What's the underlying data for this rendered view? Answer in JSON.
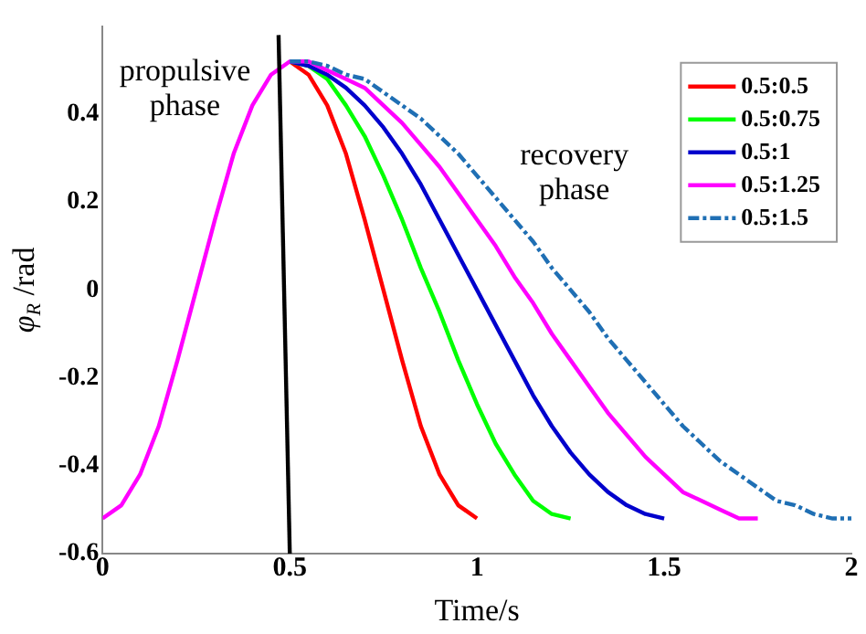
{
  "chart_data": {
    "type": "line",
    "xlabel": "Time/s",
    "ylabel": "φ$_{R}$ /rad",
    "xlim": [
      0,
      2
    ],
    "xticks": [
      0,
      0.5,
      1,
      1.5,
      2
    ],
    "ylim": [
      -0.6,
      0.6
    ],
    "yticks": [
      -0.6,
      -0.4,
      -0.2,
      0,
      0.2,
      0.4
    ],
    "grid": false,
    "legend": "top right",
    "marker": "none",
    "annotations": [
      "propulsive phase",
      "recovery phase"
    ],
    "series": [
      {
        "name": "0.5:0.5",
        "color": "#ff0000",
        "line_style": "solid",
        "x": [
          0.5,
          0.55,
          0.6,
          0.65,
          0.7,
          0.75,
          0.8,
          0.85,
          0.9,
          0.95,
          1
        ],
        "values": [
          0.52,
          0.49,
          0.42,
          0.31,
          0.16,
          0,
          -0.16,
          -0.31,
          -0.42,
          -0.49,
          -0.52
        ]
      },
      {
        "name": "0.5:0.75",
        "color": "#00ff00",
        "line_style": "solid",
        "x": [
          0.5,
          0.55,
          0.6,
          0.65,
          0.7,
          0.75,
          0.8,
          0.85,
          0.9,
          0.95,
          1,
          1.05,
          1.1,
          1.15,
          1.2,
          1.25
        ],
        "values": [
          0.52,
          0.51,
          0.48,
          0.42,
          0.35,
          0.26,
          0.16,
          0.05,
          -0.05,
          -0.16,
          -0.26,
          -0.35,
          -0.42,
          -0.48,
          -0.51,
          -0.52
        ]
      },
      {
        "name": "0.5:1",
        "color": "#0000cc",
        "line_style": "solid",
        "x": [
          0.5,
          0.55,
          0.6,
          0.65,
          0.7,
          0.75,
          0.8,
          0.85,
          0.9,
          0.95,
          1,
          1.05,
          1.1,
          1.15,
          1.2,
          1.25,
          1.3,
          1.35,
          1.4,
          1.45,
          1.5
        ],
        "values": [
          0.52,
          0.51,
          0.49,
          0.46,
          0.42,
          0.37,
          0.31,
          0.24,
          0.16,
          0.08,
          0,
          -0.08,
          -0.16,
          -0.24,
          -0.31,
          -0.37,
          -0.42,
          -0.46,
          -0.49,
          -0.51,
          -0.52
        ]
      },
      {
        "name": "0.5:1.25",
        "color": "#ff00ff",
        "line_style": "solid",
        "x": [
          0,
          0.05,
          0.1,
          0.15,
          0.2,
          0.25,
          0.3,
          0.35,
          0.4,
          0.45,
          0.5,
          0.55,
          0.6,
          0.65,
          0.7,
          0.75,
          0.8,
          0.85,
          0.9,
          0.95,
          1,
          1.05,
          1.1,
          1.15,
          1.2,
          1.25,
          1.3,
          1.35,
          1.4,
          1.45,
          1.5,
          1.55,
          1.6,
          1.65,
          1.7,
          1.75
        ],
        "values": [
          -0.52,
          -0.49,
          -0.42,
          -0.31,
          -0.16,
          0,
          0.16,
          0.31,
          0.42,
          0.49,
          0.52,
          0.52,
          0.5,
          0.48,
          0.46,
          0.42,
          0.38,
          0.33,
          0.28,
          0.22,
          0.16,
          0.1,
          0.03,
          -0.03,
          -0.1,
          -0.16,
          -0.22,
          -0.28,
          -0.33,
          -0.38,
          -0.42,
          -0.46,
          -0.48,
          -0.5,
          -0.52,
          -0.52
        ]
      },
      {
        "name": "0.5:1.5",
        "color": "#1f6fb4",
        "line_style": "dashed",
        "x": [
          0.5,
          0.55,
          0.6,
          0.65,
          0.7,
          0.75,
          0.8,
          0.85,
          0.9,
          0.95,
          1,
          1.05,
          1.1,
          1.15,
          1.2,
          1.25,
          1.3,
          1.35,
          1.4,
          1.45,
          1.5,
          1.55,
          1.6,
          1.65,
          1.7,
          1.75,
          1.8,
          1.85,
          1.9,
          1.95,
          2
        ],
        "values": [
          0.52,
          0.52,
          0.51,
          0.49,
          0.48,
          0.45,
          0.42,
          0.39,
          0.35,
          0.31,
          0.26,
          0.21,
          0.16,
          0.11,
          0.05,
          0,
          -0.05,
          -0.11,
          -0.16,
          -0.21,
          -0.26,
          -0.31,
          -0.35,
          -0.39,
          -0.42,
          -0.45,
          -0.48,
          -0.49,
          -0.51,
          -0.52,
          -0.52
        ]
      },
      {
        "color": "#000000",
        "line_style": "solid",
        "x": [
          0.47,
          0.5
        ],
        "values": [
          0.58,
          -0.6
        ]
      }
    ]
  }
}
